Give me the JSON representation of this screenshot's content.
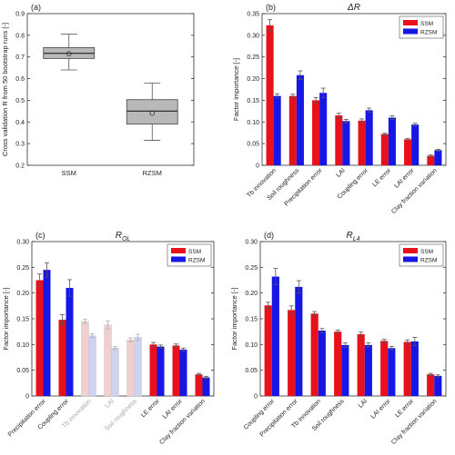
{
  "figure": {
    "colors": {
      "ssm": "#e8111b",
      "rzsm": "#1616e6",
      "ssm_faded": "#f2cfcf",
      "rzsm_faded": "#cdd3f0",
      "box_fill": "#b8b8b8",
      "axis": "#333333",
      "label_faded": "#a8a8a8"
    }
  },
  "chart_data": [
    {
      "type": "box",
      "panel_label": "(a)",
      "title": "",
      "xlabel": "",
      "ylabel": "Cross validation R from 50 bootstrap runs [-]",
      "ylim": [
        0.2,
        0.9
      ],
      "yticks": [
        "0.2",
        "0.3",
        "0.4",
        "0.5",
        "0.6",
        "0.7",
        "0.8",
        "0.9"
      ],
      "categories": [
        "SSM",
        "RZSM"
      ],
      "boxes": [
        {
          "name": "SSM",
          "whisker_low": 0.64,
          "q1": 0.693,
          "median": 0.717,
          "q3": 0.743,
          "whisker_high": 0.805,
          "mean": 0.715
        },
        {
          "name": "RZSM",
          "whisker_low": 0.315,
          "q1": 0.39,
          "median": 0.45,
          "q3": 0.503,
          "whisker_high": 0.58,
          "mean": 0.44
        }
      ]
    },
    {
      "type": "bar",
      "panel_label": "(b)",
      "title": "ΔR",
      "xlabel": "",
      "ylabel": "Factor importance [-]",
      "ylim": [
        0,
        0.35
      ],
      "yticks": [
        "0",
        "0.05",
        "0.10",
        "0.15",
        "0.20",
        "0.25",
        "0.30",
        "0.35"
      ],
      "legend_position": "top-right",
      "categories": [
        "Tb innovation",
        "Soil roughness",
        "Precipitation error",
        "LAI",
        "Coupling error",
        "LE error",
        "LAI error",
        "Clay fraction variation"
      ],
      "faded_categories": [],
      "series": [
        {
          "name": "SSM",
          "values": [
            0.323,
            0.16,
            0.15,
            0.115,
            0.103,
            0.072,
            0.06,
            0.022
          ],
          "errors": [
            0.013,
            0.004,
            0.006,
            0.005,
            0.004,
            0.002,
            0.002,
            0.002
          ]
        },
        {
          "name": "RZSM",
          "values": [
            0.16,
            0.208,
            0.167,
            0.102,
            0.127,
            0.11,
            0.094,
            0.035
          ],
          "errors": [
            0.005,
            0.01,
            0.011,
            0.004,
            0.005,
            0.004,
            0.003,
            0.002
          ]
        }
      ]
    },
    {
      "type": "bar",
      "panel_label": "(c)",
      "title": "R",
      "title_subscript": "OL",
      "xlabel": "",
      "ylabel": "Factor importance [-]",
      "ylim": [
        0,
        0.3
      ],
      "yticks": [
        "0",
        "0.05",
        "0.10",
        "0.15",
        "0.20",
        "0.25",
        "0.30"
      ],
      "legend_position": "top-right",
      "categories": [
        "Precipitation error",
        "Coupling error",
        "Tb innovation",
        "LAI",
        "Soil roughness",
        "LE error",
        "LAI error",
        "Clay fraction variation"
      ],
      "faded_categories": [
        "Tb innovation",
        "LAI",
        "Soil roughness"
      ],
      "series": [
        {
          "name": "SSM",
          "values": [
            0.225,
            0.148,
            0.145,
            0.138,
            0.109,
            0.1,
            0.098,
            0.042
          ],
          "errors": [
            0.012,
            0.01,
            0.004,
            0.008,
            0.004,
            0.004,
            0.003,
            0.002
          ]
        },
        {
          "name": "RZSM",
          "values": [
            0.245,
            0.21,
            0.117,
            0.093,
            0.114,
            0.096,
            0.09,
            0.036
          ],
          "errors": [
            0.014,
            0.016,
            0.004,
            0.003,
            0.006,
            0.003,
            0.003,
            0.002
          ]
        }
      ]
    },
    {
      "type": "bar",
      "panel_label": "(d)",
      "title": "R",
      "title_subscript": "L4",
      "xlabel": "",
      "ylabel": "Factor importance [-]",
      "ylim": [
        0,
        0.3
      ],
      "yticks": [
        "0",
        "0.05",
        "0.10",
        "0.15",
        "0.20",
        "0.25",
        "0.30"
      ],
      "legend_position": "top-right",
      "categories": [
        "Coupling error",
        "Precipitation error",
        "Tb innovation",
        "Soil roughness",
        "LAI",
        "LAI error",
        "LE error",
        "Clay fraction variation"
      ],
      "faded_categories": [],
      "series": [
        {
          "name": "SSM",
          "values": [
            0.176,
            0.167,
            0.16,
            0.125,
            0.12,
            0.107,
            0.105,
            0.042
          ],
          "errors": [
            0.006,
            0.008,
            0.004,
            0.003,
            0.004,
            0.003,
            0.004,
            0.002
          ]
        },
        {
          "name": "RZSM",
          "values": [
            0.232,
            0.212,
            0.127,
            0.099,
            0.099,
            0.093,
            0.106,
            0.039
          ],
          "errors": [
            0.016,
            0.012,
            0.004,
            0.004,
            0.004,
            0.003,
            0.008,
            0.002
          ]
        }
      ]
    }
  ]
}
